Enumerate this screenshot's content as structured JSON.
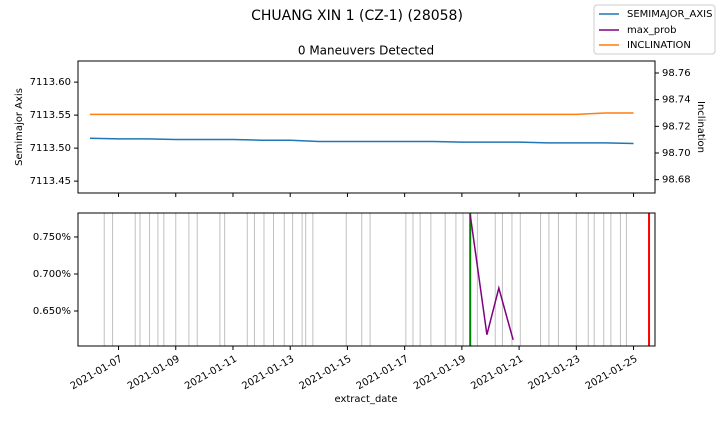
{
  "title": "CHUANG XIN 1 (CZ-1) (28058)",
  "chart_data": [
    {
      "type": "line",
      "title": "0 Maneuvers Detected",
      "ylabel": "Semimajor Axis",
      "y2label": "Inclination",
      "x": [
        "2021-01-06",
        "2021-01-07",
        "2021-01-08",
        "2021-01-09",
        "2021-01-10",
        "2021-01-11",
        "2021-01-12",
        "2021-01-13",
        "2021-01-14",
        "2021-01-15",
        "2021-01-16",
        "2021-01-17",
        "2021-01-18",
        "2021-01-19",
        "2021-01-20",
        "2021-01-21",
        "2021-01-22",
        "2021-01-23",
        "2021-01-24",
        "2021-01-25"
      ],
      "series": [
        {
          "name": "SEMIMAJOR_AXIS",
          "color": "#1f77b4",
          "values": [
            7113.515,
            7113.514,
            7113.514,
            7113.513,
            7113.513,
            7113.513,
            7113.512,
            7113.512,
            7113.51,
            7113.51,
            7113.51,
            7113.51,
            7113.51,
            7113.509,
            7113.509,
            7113.509,
            7113.508,
            7113.508,
            7113.508,
            7113.507
          ]
        },
        {
          "name": "INCLINATION",
          "color": "#ff7f0e",
          "axis": "y2",
          "values": [
            98.729,
            98.729,
            98.729,
            98.729,
            98.729,
            98.729,
            98.729,
            98.729,
            98.729,
            98.729,
            98.729,
            98.729,
            98.729,
            98.729,
            98.729,
            98.729,
            98.729,
            98.729,
            98.73,
            98.73
          ]
        }
      ],
      "xlim": [
        "2021-01-05 14:00",
        "2021-01-25 18:00"
      ],
      "ylim": [
        7113.432,
        7113.632
      ],
      "yticks": [
        7113.45,
        {
          "value": 7113.5,
          "label": "7113.50"
        },
        7113.55,
        {
          "value": 7113.6,
          "label": "7113.60"
        }
      ],
      "y2lim": [
        98.67,
        98.769
      ],
      "y2ticks": [
        98.68,
        {
          "value": 98.7,
          "label": "98.70"
        },
        98.72,
        98.74,
        98.76
      ]
    },
    {
      "type": "line",
      "xlabel": "extract_date",
      "x": [
        "2021-01-19 07:00",
        "2021-01-19 21:00",
        "2021-01-20 07:00",
        "2021-01-20 19:00"
      ],
      "series": [
        {
          "name": "max_prob",
          "color": "#800080",
          "values": [
            0.78,
            0.618,
            0.681,
            0.611
          ]
        }
      ],
      "observation_lines": {
        "color": "#c0c0c0",
        "x": [
          "2021-01-06 12:00",
          "2021-01-06 19:00",
          "2021-01-07 14:00",
          "2021-01-07 18:00",
          "2021-01-08 02:00",
          "2021-01-08 09:00",
          "2021-01-08 14:00",
          "2021-01-09 00:00",
          "2021-01-09 11:00",
          "2021-01-09 18:00",
          "2021-01-10 13:00",
          "2021-01-10 17:00",
          "2021-01-11 12:00",
          "2021-01-11 18:00",
          "2021-01-12 02:00",
          "2021-01-12 10:00",
          "2021-01-12 19:00",
          "2021-01-13 02:00",
          "2021-01-13 10:00",
          "2021-01-13 13:00",
          "2021-01-13 19:00",
          "2021-01-14 23:00",
          "2021-01-15 12:00",
          "2021-01-15 19:00",
          "2021-01-17 01:00",
          "2021-01-17 07:00",
          "2021-01-17 13:00",
          "2021-01-17 22:00",
          "2021-01-18 10:00",
          "2021-01-18 19:00",
          "2021-01-19 01:00",
          "2021-01-19 13:00",
          "2021-01-20 04:00",
          "2021-01-20 10:00",
          "2021-01-20 18:00",
          "2021-01-21 01:00",
          "2021-01-21 18:00",
          "2021-01-22 01:00",
          "2021-01-22 09:00",
          "2021-01-23 00:00",
          "2021-01-23 10:00",
          "2021-01-23 15:00",
          "2021-01-23 23:00",
          "2021-01-24 05:00",
          "2021-01-24 13:00",
          "2021-01-24 18:00"
        ]
      },
      "markers": [
        {
          "x": "2021-01-19 07:00",
          "color": "#008000"
        },
        {
          "x": "2021-01-25 13:00",
          "color": "#ff0000"
        }
      ],
      "xlim": [
        "2021-01-05 14:00",
        "2021-01-25 18:00"
      ],
      "ylim": [
        0.6027,
        0.7824
      ],
      "yticks": [
        {
          "value": 0.65,
          "label": "0.650%"
        },
        {
          "value": 0.7,
          "label": "0.700%"
        },
        {
          "value": 0.75,
          "label": "0.750%"
        }
      ],
      "xticks": [
        "2021-01-07",
        "2021-01-09",
        "2021-01-11",
        "2021-01-13",
        "2021-01-15",
        "2021-01-17",
        "2021-01-19",
        "2021-01-21",
        "2021-01-23",
        "2021-01-25"
      ]
    }
  ]
}
